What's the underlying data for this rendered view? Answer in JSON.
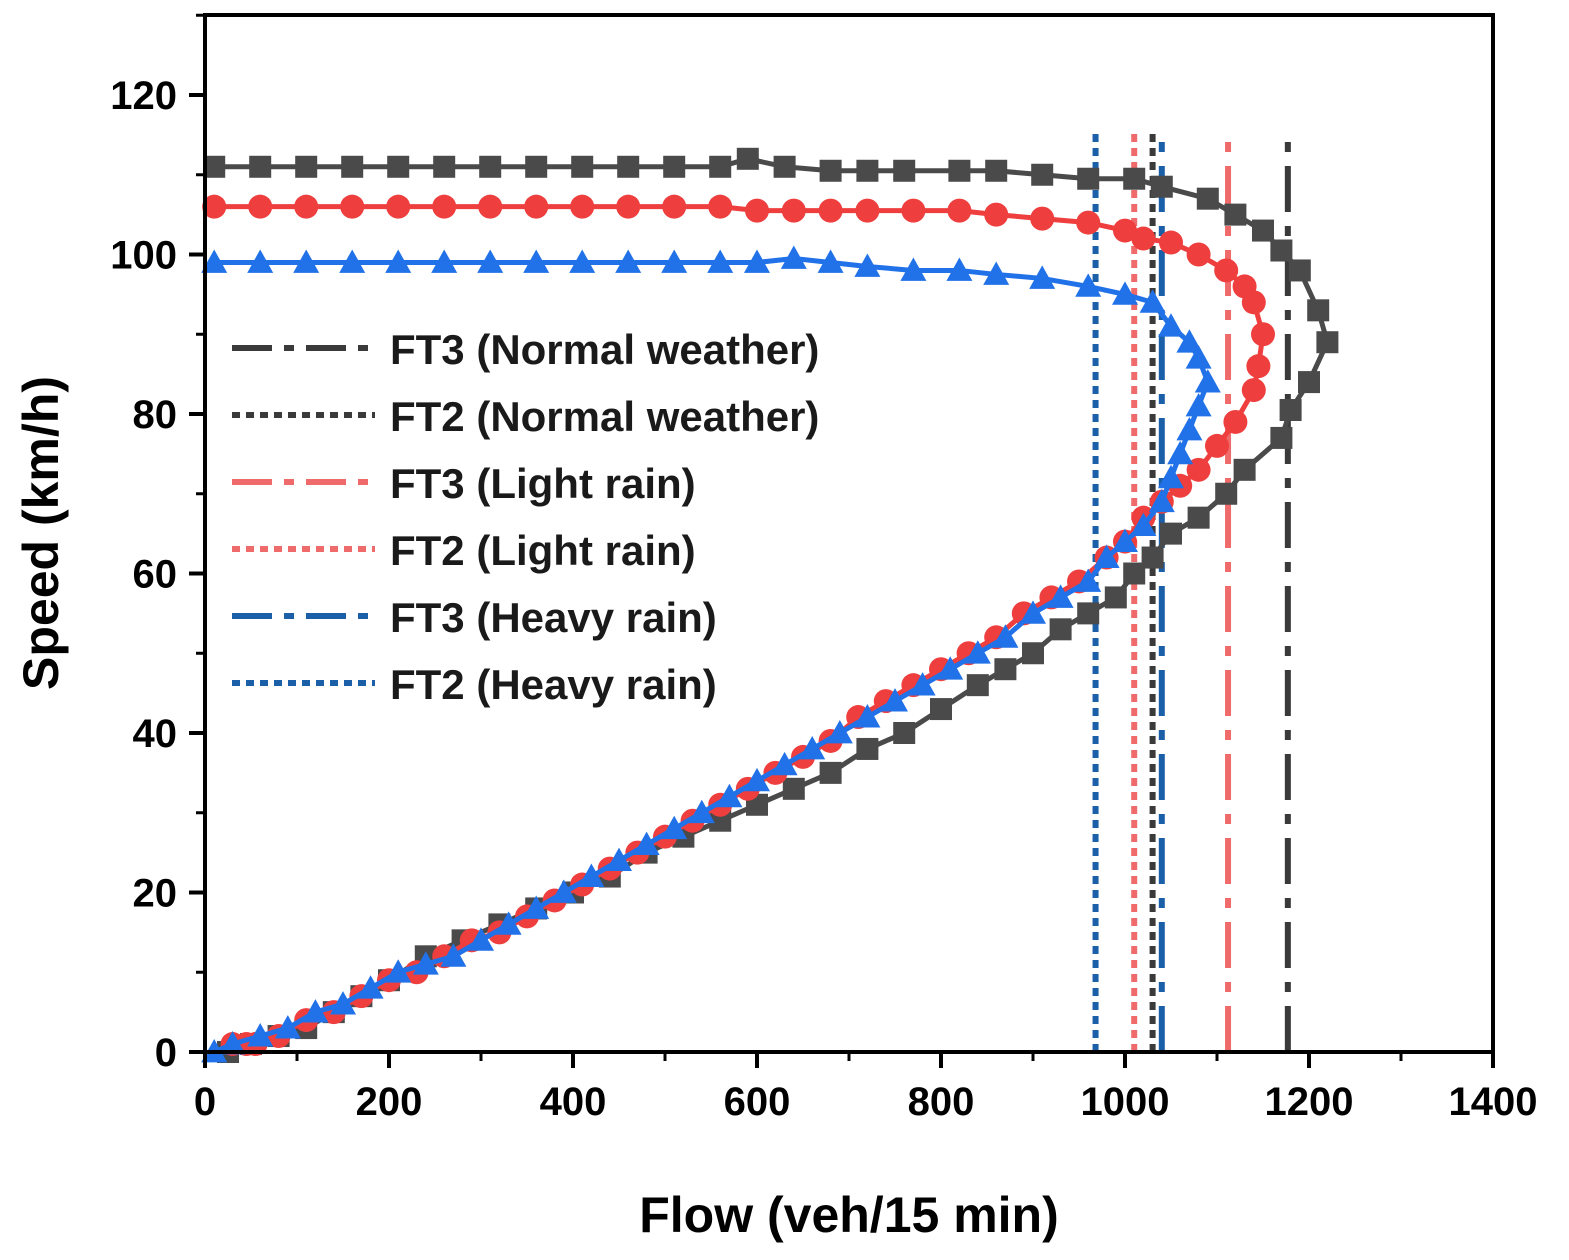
{
  "chart_data": {
    "type": "scatter",
    "xlabel": "Flow (veh/15 min)",
    "ylabel": "Speed (km/h)",
    "xlim": [
      0,
      1400
    ],
    "ylim": [
      0,
      120
    ],
    "x_ticks": [
      0,
      200,
      400,
      600,
      800,
      1000,
      1200,
      1400
    ],
    "y_ticks": [
      0,
      20,
      40,
      60,
      80,
      100,
      120
    ],
    "grid": false,
    "legend_position": "left-center",
    "series": [
      {
        "name": "Normal weather",
        "color": "#4a4a4a",
        "marker": "square",
        "x": [
          10,
          60,
          110,
          160,
          210,
          260,
          310,
          360,
          410,
          460,
          510,
          560,
          590,
          630,
          680,
          720,
          760,
          820,
          860,
          910,
          960,
          1010,
          1040,
          1090,
          1120,
          1150,
          1170,
          1190,
          1210,
          1220,
          1200,
          1180,
          1170,
          1130,
          1110,
          1080,
          1050,
          1030,
          1010,
          990,
          960,
          930,
          900,
          870,
          840,
          800,
          760,
          720,
          680,
          640,
          600,
          560,
          520,
          480,
          440,
          400,
          360,
          320,
          280,
          240,
          200,
          170,
          140,
          110,
          80,
          50,
          25
        ],
        "y": [
          111,
          111,
          111,
          111,
          111,
          111,
          111,
          111,
          111,
          111,
          111,
          111,
          112,
          111,
          110.5,
          110.5,
          110.5,
          110.5,
          110.5,
          110,
          109.5,
          109.5,
          108.5,
          107,
          105,
          103,
          100.5,
          98,
          93,
          89,
          84,
          80.5,
          77,
          73,
          70,
          67,
          65,
          62,
          60,
          57,
          55,
          53,
          50,
          48,
          46,
          43,
          40,
          38,
          35,
          33,
          31,
          29,
          27,
          25,
          22,
          20,
          18,
          16,
          14,
          12,
          9,
          7,
          5,
          3,
          2,
          1,
          0
        ]
      },
      {
        "name": "Light rain",
        "color": "#ef3e3e",
        "marker": "circle",
        "x": [
          10,
          60,
          110,
          160,
          210,
          260,
          310,
          360,
          410,
          460,
          510,
          560,
          600,
          640,
          680,
          720,
          770,
          820,
          860,
          910,
          960,
          1000,
          1020,
          1050,
          1080,
          1110,
          1130,
          1140,
          1150,
          1145,
          1140,
          1120,
          1100,
          1080,
          1060,
          1040,
          1020,
          1000,
          980,
          950,
          920,
          890,
          860,
          830,
          800,
          770,
          740,
          710,
          680,
          650,
          620,
          590,
          560,
          530,
          500,
          470,
          440,
          410,
          380,
          350,
          320,
          290,
          260,
          230,
          200,
          170,
          140,
          110,
          80,
          55,
          45,
          30
        ],
        "y": [
          106,
          106,
          106,
          106,
          106,
          106,
          106,
          106,
          106,
          106,
          106,
          106,
          105.5,
          105.5,
          105.5,
          105.5,
          105.5,
          105.5,
          105,
          104.5,
          104,
          103,
          102,
          101.5,
          100,
          98,
          96,
          94,
          90,
          86,
          83,
          79,
          76,
          73,
          71,
          69,
          67,
          64,
          62,
          59,
          57,
          55,
          52,
          50,
          48,
          46,
          44,
          42,
          39,
          37,
          35,
          33,
          31,
          29,
          27,
          25,
          23,
          21,
          19,
          17,
          15,
          14,
          12,
          10,
          9,
          7,
          5,
          4,
          2,
          1,
          1,
          1
        ]
      },
      {
        "name": "Heavy rain",
        "color": "#2171e8",
        "marker": "triangle",
        "x": [
          10,
          60,
          110,
          160,
          210,
          260,
          310,
          360,
          410,
          460,
          510,
          560,
          600,
          640,
          680,
          720,
          770,
          820,
          860,
          910,
          960,
          1000,
          1030,
          1050,
          1070,
          1080,
          1090,
          1080,
          1070,
          1060,
          1050,
          1040,
          1020,
          1000,
          980,
          960,
          930,
          900,
          870,
          840,
          810,
          780,
          750,
          720,
          690,
          660,
          630,
          600,
          570,
          540,
          510,
          480,
          450,
          420,
          390,
          360,
          330,
          300,
          270,
          240,
          210,
          180,
          150,
          120,
          90,
          60,
          30,
          10
        ],
        "y": [
          99,
          99,
          99,
          99,
          99,
          99,
          99,
          99,
          99,
          99,
          99,
          99,
          99,
          99.5,
          99,
          98.5,
          98,
          98,
          97.5,
          97,
          96,
          95,
          94,
          91,
          89,
          87,
          84,
          81,
          78,
          75,
          72,
          69,
          66,
          64,
          62,
          59,
          57,
          55,
          52,
          50,
          48,
          46,
          44,
          42,
          40,
          38,
          36,
          34,
          32,
          30,
          28,
          26,
          24,
          22,
          20,
          18,
          16,
          14,
          12,
          11,
          10,
          8,
          6,
          5,
          3,
          2,
          1,
          0
        ]
      }
    ],
    "capacity_lines": [
      {
        "name": "FT3 (Normal weather)",
        "x": 1177,
        "color": "#3a3a3a",
        "style": "dashdot"
      },
      {
        "name": "FT2 (Normal weather)",
        "x": 1030,
        "color": "#3a3a3a",
        "style": "dotted"
      },
      {
        "name": "FT3 (Light rain)",
        "x": 1112,
        "color": "#ef6b6b",
        "style": "dashdot"
      },
      {
        "name": "FT2 (Light rain)",
        "x": 1010,
        "color": "#ef6b6b",
        "style": "dotted"
      },
      {
        "name": "FT3 (Heavy rain)",
        "x": 1040,
        "color": "#1a5fa8",
        "style": "dashdot"
      },
      {
        "name": "FT2 (Heavy rain)",
        "x": 968,
        "color": "#1a5fa8",
        "style": "dotted"
      }
    ]
  }
}
